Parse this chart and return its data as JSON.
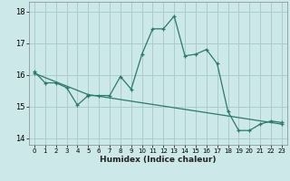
{
  "xlabel": "Humidex (Indice chaleur)",
  "bg_color": "#cce8e8",
  "grid_color": "#aacccc",
  "line_color": "#2a7a6a",
  "xlim": [
    -0.5,
    23.5
  ],
  "ylim": [
    13.8,
    18.3
  ],
  "xticks": [
    0,
    1,
    2,
    3,
    4,
    5,
    6,
    7,
    8,
    9,
    10,
    11,
    12,
    13,
    14,
    15,
    16,
    17,
    18,
    19,
    20,
    21,
    22,
    23
  ],
  "yticks": [
    14,
    15,
    16,
    17,
    18
  ],
  "line1_x": [
    0,
    1,
    2,
    3,
    4,
    5,
    6,
    7,
    8,
    9,
    10,
    11,
    12,
    13,
    14,
    15,
    16,
    17,
    18,
    19,
    20,
    21,
    22,
    23
  ],
  "line1_y": [
    16.1,
    15.75,
    15.75,
    15.6,
    15.05,
    15.35,
    15.35,
    15.35,
    15.95,
    15.55,
    16.65,
    17.45,
    17.45,
    17.85,
    16.6,
    16.65,
    16.8,
    16.35,
    14.85,
    14.25,
    14.25,
    14.45,
    14.55,
    14.5
  ],
  "line2_x": [
    0,
    5,
    23
  ],
  "line2_y": [
    16.05,
    15.38,
    14.45
  ]
}
